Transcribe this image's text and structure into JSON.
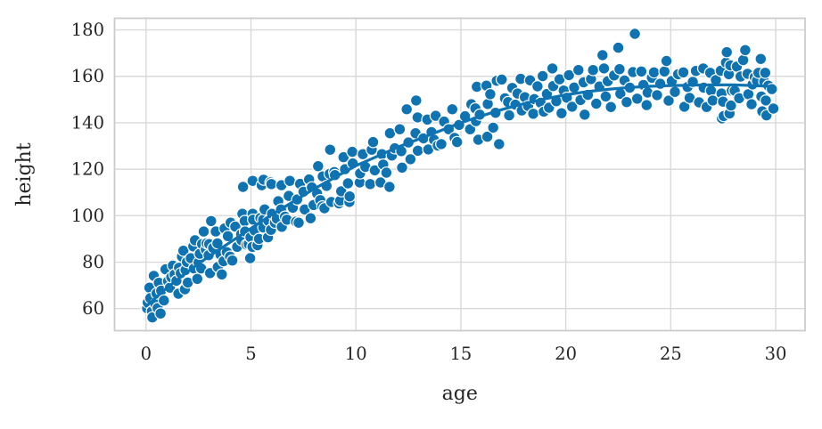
{
  "figure": {
    "kind": "seaborn-style scatter plot with regression curve",
    "background_color": "#ffffff"
  },
  "chart_data": {
    "type": "scatter",
    "title": "",
    "xlabel": "age",
    "ylabel": "height",
    "x_ticks": [
      0,
      5,
      10,
      15,
      20,
      25,
      30
    ],
    "y_ticks": [
      60,
      80,
      100,
      120,
      140,
      160,
      180
    ],
    "xlim": [
      -1.5,
      31.4
    ],
    "ylim": [
      50.5,
      185.0
    ],
    "grid": true,
    "legend": "none",
    "marker_color": "#0f73b2",
    "marker_edge_color": "#ffffff",
    "line_color": "#0f73b2",
    "grid_color": "#d9d9d9",
    "spine_color": "#cccccc",
    "text_color": "#262626",
    "points": [
      [
        0.05,
        60.1
      ],
      [
        0.08,
        62.6
      ],
      [
        0.16,
        69.0
      ],
      [
        0.2,
        64.5
      ],
      [
        0.28,
        58.8
      ],
      [
        0.3,
        56.2
      ],
      [
        0.37,
        74.1
      ],
      [
        0.44,
        62.0
      ],
      [
        0.5,
        66.5
      ],
      [
        0.55,
        60.2
      ],
      [
        0.61,
        71.1
      ],
      [
        0.69,
        57.9
      ],
      [
        0.72,
        67.7
      ],
      [
        0.85,
        63.5
      ],
      [
        0.93,
        76.9
      ],
      [
        1.05,
        71.8
      ],
      [
        1.14,
        69.0
      ],
      [
        1.2,
        73.5
      ],
      [
        1.28,
        78.5
      ],
      [
        1.36,
        74.7
      ],
      [
        1.45,
        72.0
      ],
      [
        1.54,
        66.4
      ],
      [
        1.57,
        77.6
      ],
      [
        1.65,
        75.2
      ],
      [
        1.71,
        82.4
      ],
      [
        1.78,
        84.9
      ],
      [
        1.85,
        68.3
      ],
      [
        1.88,
        76.6
      ],
      [
        1.95,
        80.1
      ],
      [
        1.99,
        71.2
      ],
      [
        2.13,
        81.7
      ],
      [
        2.25,
        86.8
      ],
      [
        2.28,
        77.3
      ],
      [
        2.33,
        89.4
      ],
      [
        2.44,
        72.8
      ],
      [
        2.5,
        79.8
      ],
      [
        2.56,
        83.6
      ],
      [
        2.63,
        77.3
      ],
      [
        2.67,
        87.8
      ],
      [
        2.75,
        93.2
      ],
      [
        2.85,
        85.4
      ],
      [
        2.89,
        88.1
      ],
      [
        2.98,
        83.0
      ],
      [
        3.01,
        87.8
      ],
      [
        3.05,
        75.3
      ],
      [
        3.1,
        97.7
      ],
      [
        3.2,
        86.1
      ],
      [
        3.32,
        93.2
      ],
      [
        3.4,
        88.1
      ],
      [
        3.42,
        77.9
      ],
      [
        3.55,
        83.2
      ],
      [
        3.61,
        74.7
      ],
      [
        3.69,
        80.4
      ],
      [
        3.74,
        94.5
      ],
      [
        3.85,
        84.3
      ],
      [
        3.9,
        91.2
      ],
      [
        4.0,
        82.4
      ],
      [
        4.03,
        97.0
      ],
      [
        4.11,
        80.7
      ],
      [
        4.25,
        95.3
      ],
      [
        4.34,
        86.6
      ],
      [
        4.53,
        92.0
      ],
      [
        4.55,
        89.4
      ],
      [
        4.59,
        100.8
      ],
      [
        4.62,
        112.4
      ],
      [
        4.7,
        97.7
      ],
      [
        4.72,
        93.2
      ],
      [
        4.79,
        87.5
      ],
      [
        4.89,
        87.8
      ],
      [
        4.96,
        81.7
      ],
      [
        4.98,
        90.7
      ],
      [
        5.07,
        86.6
      ],
      [
        5.08,
        100.8
      ],
      [
        5.08,
        115.0
      ],
      [
        5.1,
        98.3
      ],
      [
        5.17,
        93.6
      ],
      [
        5.31,
        87.3
      ],
      [
        5.38,
        90.0
      ],
      [
        5.45,
        99.0
      ],
      [
        5.51,
        113.1
      ],
      [
        5.58,
        98.3
      ],
      [
        5.59,
        94.9
      ],
      [
        5.6,
        115.5
      ],
      [
        5.65,
        102.7
      ],
      [
        5.81,
        90.7
      ],
      [
        5.83,
        97.7
      ],
      [
        5.93,
        114.3
      ],
      [
        5.95,
        93.9
      ],
      [
        5.97,
        113.6
      ],
      [
        6.0,
        100.8
      ],
      [
        6.14,
        97.0
      ],
      [
        6.23,
        98.7
      ],
      [
        6.3,
        106.2
      ],
      [
        6.43,
        102.7
      ],
      [
        6.45,
        113.1
      ],
      [
        6.47,
        95.2
      ],
      [
        6.62,
        99.6
      ],
      [
        6.71,
        98.3
      ],
      [
        6.8,
        108.5
      ],
      [
        6.85,
        115.0
      ],
      [
        6.99,
        103.4
      ],
      [
        7.15,
        97.4
      ],
      [
        7.2,
        107.0
      ],
      [
        7.27,
        97.0
      ],
      [
        7.34,
        113.7
      ],
      [
        7.5,
        110.3
      ],
      [
        7.56,
        102.7
      ],
      [
        7.77,
        115.6
      ],
      [
        7.84,
        98.9
      ],
      [
        7.9,
        112.2
      ],
      [
        7.98,
        104.6
      ],
      [
        8.15,
        109.5
      ],
      [
        8.2,
        121.3
      ],
      [
        8.3,
        106.7
      ],
      [
        8.4,
        104.0
      ],
      [
        8.42,
        116.9
      ],
      [
        8.5,
        103.2
      ],
      [
        8.6,
        112.8
      ],
      [
        8.75,
        118.0
      ],
      [
        8.77,
        128.4
      ],
      [
        8.83,
        105.9
      ],
      [
        8.97,
        118.8
      ],
      [
        9.0,
        117.5
      ],
      [
        9.19,
        105.3
      ],
      [
        9.25,
        106.5
      ],
      [
        9.3,
        110.5
      ],
      [
        9.41,
        125.2
      ],
      [
        9.48,
        120.0
      ],
      [
        9.62,
        113.9
      ],
      [
        9.69,
        105.9
      ],
      [
        9.7,
        108.3
      ],
      [
        9.83,
        127.5
      ],
      [
        9.85,
        122.5
      ],
      [
        10.18,
        114.3
      ],
      [
        10.2,
        118.2
      ],
      [
        10.33,
        126.5
      ],
      [
        10.45,
        121.0
      ],
      [
        10.68,
        113.6
      ],
      [
        10.75,
        128.4
      ],
      [
        10.82,
        131.7
      ],
      [
        10.9,
        119.5
      ],
      [
        11.17,
        114.3
      ],
      [
        11.24,
        126.5
      ],
      [
        11.3,
        122.0
      ],
      [
        11.45,
        118.5
      ],
      [
        11.6,
        112.4
      ],
      [
        11.62,
        135.5
      ],
      [
        11.71,
        125.9
      ],
      [
        11.85,
        129.0
      ],
      [
        12.09,
        137.2
      ],
      [
        12.16,
        127.8
      ],
      [
        12.2,
        120.7
      ],
      [
        12.42,
        145.8
      ],
      [
        12.5,
        131.5
      ],
      [
        12.6,
        124.3
      ],
      [
        12.84,
        135.5
      ],
      [
        12.87,
        149.6
      ],
      [
        12.94,
        142.3
      ],
      [
        12.95,
        128.0
      ],
      [
        13.22,
        133.3
      ],
      [
        13.4,
        141.4
      ],
      [
        13.45,
        128.5
      ],
      [
        13.6,
        136.0
      ],
      [
        13.72,
        132.7
      ],
      [
        13.8,
        143.0
      ],
      [
        13.9,
        130.2
      ],
      [
        14.07,
        130.8
      ],
      [
        14.2,
        140.5
      ],
      [
        14.42,
        137.2
      ],
      [
        14.59,
        145.8
      ],
      [
        14.7,
        133.5
      ],
      [
        14.82,
        131.7
      ],
      [
        14.92,
        139.1
      ],
      [
        15.2,
        142.8
      ],
      [
        15.44,
        137.2
      ],
      [
        15.5,
        148.0
      ],
      [
        15.69,
        146.2
      ],
      [
        15.72,
        140.7
      ],
      [
        15.76,
        155.5
      ],
      [
        15.83,
        132.7
      ],
      [
        15.9,
        143.5
      ],
      [
        16.22,
        156.0
      ],
      [
        16.26,
        134.0
      ],
      [
        16.28,
        148.1
      ],
      [
        16.4,
        152.3
      ],
      [
        16.54,
        137.9
      ],
      [
        16.65,
        144.3
      ],
      [
        16.71,
        158.1
      ],
      [
        16.82,
        130.8
      ],
      [
        16.95,
        158.6
      ],
      [
        17.1,
        150.5
      ],
      [
        17.25,
        148.9
      ],
      [
        17.3,
        143.2
      ],
      [
        17.45,
        155.0
      ],
      [
        17.6,
        147.8
      ],
      [
        17.7,
        152.6
      ],
      [
        17.85,
        158.9
      ],
      [
        17.9,
        145.3
      ],
      [
        18.05,
        151.0
      ],
      [
        18.2,
        147.2
      ],
      [
        18.3,
        158.3
      ],
      [
        18.45,
        143.9
      ],
      [
        18.5,
        150.2
      ],
      [
        18.65,
        155.7
      ],
      [
        18.8,
        148.6
      ],
      [
        18.9,
        160.1
      ],
      [
        18.95,
        144.8
      ],
      [
        19.1,
        152.4
      ],
      [
        19.2,
        146.5
      ],
      [
        19.36,
        163.4
      ],
      [
        19.4,
        155.8
      ],
      [
        19.55,
        149.3
      ],
      [
        19.7,
        158.7
      ],
      [
        19.8,
        144.1
      ],
      [
        19.9,
        153.9
      ],
      [
        20.05,
        150.8
      ],
      [
        20.15,
        160.5
      ],
      [
        20.3,
        146.9
      ],
      [
        20.4,
        155.2
      ],
      [
        20.6,
        162.7
      ],
      [
        20.7,
        149.8
      ],
      [
        20.85,
        157.4
      ],
      [
        20.9,
        143.5
      ],
      [
        21.05,
        152.0
      ],
      [
        21.2,
        158.8
      ],
      [
        21.3,
        162.7
      ],
      [
        21.45,
        148.2
      ],
      [
        21.6,
        155.6
      ],
      [
        21.75,
        169.1
      ],
      [
        21.82,
        163.4
      ],
      [
        21.9,
        151.3
      ],
      [
        22.0,
        157.9
      ],
      [
        22.15,
        146.8
      ],
      [
        22.3,
        160.4
      ],
      [
        22.5,
        172.3
      ],
      [
        22.56,
        163.1
      ],
      [
        22.6,
        152.5
      ],
      [
        22.8,
        158.2
      ],
      [
        22.9,
        148.9
      ],
      [
        23.05,
        155.1
      ],
      [
        23.2,
        161.8
      ],
      [
        23.29,
        178.3
      ],
      [
        23.4,
        150.4
      ],
      [
        23.6,
        162.1
      ],
      [
        23.7,
        156.3
      ],
      [
        23.85,
        147.6
      ],
      [
        23.9,
        153.0
      ],
      [
        24.1,
        159.4
      ],
      [
        24.2,
        161.7
      ],
      [
        24.35,
        151.9
      ],
      [
        24.5,
        156.8
      ],
      [
        24.7,
        162.1
      ],
      [
        24.8,
        166.6
      ],
      [
        24.9,
        149.5
      ],
      [
        25.05,
        158.0
      ],
      [
        25.2,
        153.3
      ],
      [
        25.35,
        160.9
      ],
      [
        25.6,
        161.7
      ],
      [
        25.65,
        146.9
      ],
      [
        25.8,
        155.4
      ],
      [
        25.9,
        150.7
      ],
      [
        26.05,
        157.6
      ],
      [
        26.2,
        162.3
      ],
      [
        26.35,
        148.8
      ],
      [
        26.55,
        163.4
      ],
      [
        26.57,
        155.1
      ],
      [
        26.71,
        146.8
      ],
      [
        26.88,
        161.5
      ],
      [
        26.92,
        153.8
      ],
      [
        27.0,
        149.6
      ],
      [
        27.15,
        158.4
      ],
      [
        27.38,
        162.4
      ],
      [
        27.42,
        152.6
      ],
      [
        27.44,
        141.9
      ],
      [
        27.49,
        149.1
      ],
      [
        27.52,
        142.9
      ],
      [
        27.63,
        165.9
      ],
      [
        27.67,
        170.4
      ],
      [
        27.77,
        160.9
      ],
      [
        27.8,
        144.0
      ],
      [
        27.84,
        164.7
      ],
      [
        27.87,
        147.4
      ],
      [
        27.91,
        153.8
      ],
      [
        28.05,
        153.8
      ],
      [
        28.15,
        164.2
      ],
      [
        28.26,
        150.6
      ],
      [
        28.33,
        159.9
      ],
      [
        28.45,
        167.0
      ],
      [
        28.55,
        171.3
      ],
      [
        28.66,
        161.1
      ],
      [
        28.7,
        152.3
      ],
      [
        28.85,
        148.0
      ],
      [
        28.9,
        156.5
      ],
      [
        29.0,
        159.6
      ],
      [
        29.11,
        158.1
      ],
      [
        29.18,
        161.5
      ],
      [
        29.29,
        167.5
      ],
      [
        29.32,
        151.3
      ],
      [
        29.36,
        144.9
      ],
      [
        29.46,
        157.7
      ],
      [
        29.5,
        161.5
      ],
      [
        29.53,
        149.6
      ],
      [
        29.56,
        143.2
      ],
      [
        29.65,
        156.0
      ],
      [
        29.82,
        154.5
      ],
      [
        29.89,
        146.1
      ]
    ],
    "regression_line": [
      [
        0,
        61
      ],
      [
        1,
        69
      ],
      [
        2,
        76
      ],
      [
        3,
        82.5
      ],
      [
        4,
        88.5
      ],
      [
        5,
        94.5
      ],
      [
        6,
        100.5
      ],
      [
        7,
        106
      ],
      [
        8,
        111.5
      ],
      [
        9,
        116.5
      ],
      [
        10,
        121.5
      ],
      [
        11,
        125.5
      ],
      [
        12,
        129.5
      ],
      [
        13,
        133
      ],
      [
        14,
        136.5
      ],
      [
        15,
        140
      ],
      [
        16,
        143
      ],
      [
        17,
        145.8
      ],
      [
        18,
        148.2
      ],
      [
        19,
        150.3
      ],
      [
        20,
        152
      ],
      [
        21,
        153.4
      ],
      [
        22,
        154.4
      ],
      [
        23,
        155.2
      ],
      [
        24,
        155.7
      ],
      [
        25,
        156
      ],
      [
        26,
        156.2
      ],
      [
        27,
        156.3
      ],
      [
        28,
        156.3
      ],
      [
        29,
        156
      ],
      [
        29.9,
        155.6
      ]
    ]
  }
}
